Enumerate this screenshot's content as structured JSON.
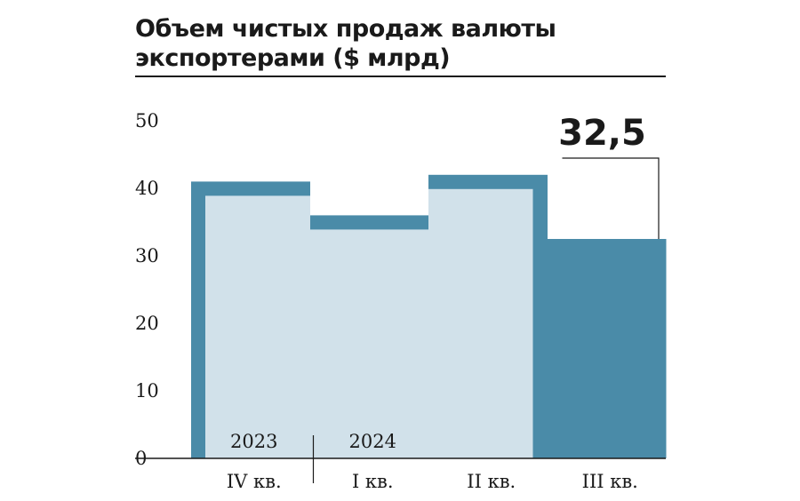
{
  "chart_data": {
    "type": "bar",
    "title_lines": [
      "Объем чистых продаж валюты",
      "экспортерами ($ млрд)"
    ],
    "categories": [
      "IV кв.",
      "I кв.",
      "II кв.",
      "III кв."
    ],
    "years": [
      {
        "label": "2023",
        "category_index": 0
      },
      {
        "label": "2024",
        "category_index": 1
      }
    ],
    "values": [
      41,
      36,
      42,
      32.5
    ],
    "highlight_index": 3,
    "highlight_label": "32,5",
    "yticks": [
      0,
      10,
      20,
      30,
      40,
      50
    ],
    "ylim": [
      0,
      50
    ],
    "xlabel": "",
    "ylabel": "",
    "grid": false,
    "colors": {
      "dark": "#4a8ba8",
      "light": "#d1e1ea",
      "text": "#1a1a1a"
    }
  }
}
